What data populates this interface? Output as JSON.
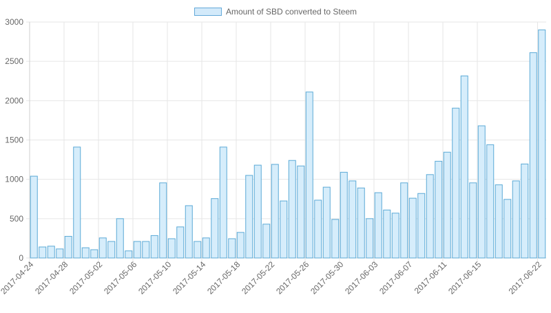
{
  "chart_data": {
    "type": "bar",
    "legend": [
      "Amount of SBD converted to Steem"
    ],
    "legend_position": "top-center",
    "grid": true,
    "ylim": [
      0,
      3000
    ],
    "yticks": [
      "0",
      "500",
      "1000",
      "1500",
      "2000",
      "2500",
      "3000"
    ],
    "xtick_labels": [
      {
        "index": 0,
        "label": "2017-04-24"
      },
      {
        "index": 4,
        "label": "2017-04-28"
      },
      {
        "index": 8,
        "label": "2017-05-02"
      },
      {
        "index": 12,
        "label": "2017-05-06"
      },
      {
        "index": 16,
        "label": "2017-05-10"
      },
      {
        "index": 20,
        "label": "2017-05-14"
      },
      {
        "index": 24,
        "label": "2017-05-18"
      },
      {
        "index": 28,
        "label": "2017-05-22"
      },
      {
        "index": 32,
        "label": "2017-05-26"
      },
      {
        "index": 36,
        "label": "2017-05-30"
      },
      {
        "index": 40,
        "label": "2017-06-03"
      },
      {
        "index": 44,
        "label": "2017-06-07"
      },
      {
        "index": 48,
        "label": "2017-06-11"
      },
      {
        "index": 52,
        "label": "2017-06-15"
      },
      {
        "index": 59,
        "label": "2017-06-22"
      }
    ],
    "series": [
      {
        "name": "Amount of SBD converted to Steem",
        "fill": "#d6edfb",
        "stroke": "#5aa9d6",
        "values": [
          1040,
          140,
          150,
          115,
          275,
          1410,
          130,
          105,
          255,
          210,
          500,
          90,
          210,
          210,
          285,
          955,
          245,
          395,
          665,
          210,
          255,
          755,
          1410,
          245,
          325,
          1050,
          1180,
          430,
          1190,
          725,
          1240,
          1170,
          2110,
          735,
          900,
          490,
          1090,
          980,
          890,
          500,
          830,
          610,
          570,
          955,
          760,
          820,
          1060,
          1230,
          1345,
          1905,
          2315,
          955,
          1680,
          1440,
          930,
          745,
          980,
          1195,
          2610,
          2900
        ]
      }
    ]
  }
}
